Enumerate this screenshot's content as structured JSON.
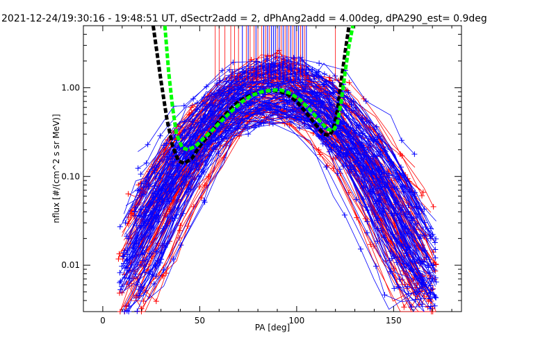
{
  "chart_data": {
    "type": "line",
    "title": "2021-12-24/19:30:16 - 19:48:51 UT, dSectr2add = 2, dPhAng2add = 4.00deg, dPA290_est=   0.9deg",
    "xlabel": "PA [deg]",
    "ylabel": "nflux [#/(cm^2 s sr MeV)]",
    "xlim": [
      -10,
      185
    ],
    "ylim": [
      0.003,
      5.0
    ],
    "yscale": "log",
    "xticks": [
      0,
      50,
      100,
      150
    ],
    "xtick_labels": [
      "0",
      "50",
      "100",
      "150"
    ],
    "yticks": [
      0.01,
      0.1,
      1.0
    ],
    "ytick_labels": [
      "0.01",
      "0.10",
      "1.00"
    ],
    "grid": false,
    "colors": {
      "red": "#ff0000",
      "blue": "#0000ff",
      "green": "#00ff00",
      "black": "#000000"
    },
    "series": [
      {
        "color": "black",
        "style": "dashed",
        "x": [
          26,
          30,
          33,
          36,
          39,
          42,
          46,
          50,
          55,
          60,
          65,
          70,
          75,
          80,
          85,
          90,
          95,
          100,
          105,
          110,
          114,
          117,
          119,
          121,
          123,
          125,
          127
        ],
        "y": [
          5.0,
          1.2,
          0.45,
          0.22,
          0.15,
          0.14,
          0.16,
          0.22,
          0.3,
          0.42,
          0.55,
          0.7,
          0.8,
          0.88,
          0.92,
          0.92,
          0.85,
          0.7,
          0.52,
          0.38,
          0.3,
          0.29,
          0.35,
          0.55,
          1.2,
          2.5,
          5.0
        ]
      },
      {
        "color": "green",
        "style": "dashed",
        "x": [
          32,
          34,
          36,
          38,
          41,
          44,
          48,
          52,
          57,
          62,
          67,
          72,
          77,
          82,
          87,
          92,
          97,
          102,
          107,
          112,
          116,
          119,
          121,
          123,
          125,
          127,
          129
        ],
        "y": [
          5.0,
          1.5,
          0.6,
          0.3,
          0.21,
          0.2,
          0.22,
          0.27,
          0.34,
          0.44,
          0.56,
          0.7,
          0.82,
          0.9,
          0.94,
          0.94,
          0.86,
          0.72,
          0.56,
          0.42,
          0.34,
          0.33,
          0.4,
          0.7,
          1.5,
          3.0,
          5.0
        ]
      }
    ]
  }
}
